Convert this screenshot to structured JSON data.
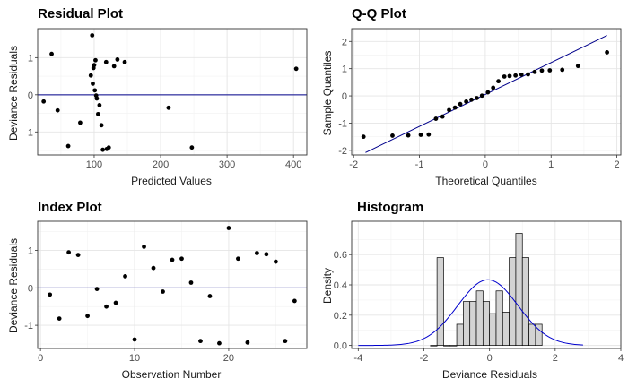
{
  "chart_data": [
    {
      "id": "residual",
      "type": "scatter",
      "title": "Residual Plot",
      "xlabel": "Predicted Values",
      "ylabel": "Deviance Residuals",
      "xlim": [
        15,
        420
      ],
      "ylim": [
        -1.62,
        1.78
      ],
      "xticks": [
        100,
        200,
        300,
        400
      ],
      "yticks": [
        -1,
        0,
        1
      ],
      "grid": true,
      "hline": 0,
      "line_color": "#00008b",
      "points": [
        [
          24,
          -0.18
        ],
        [
          36,
          1.1
        ],
        [
          45,
          -0.42
        ],
        [
          61,
          -1.38
        ],
        [
          79,
          -0.75
        ],
        [
          95,
          0.52
        ],
        [
          97,
          1.6
        ],
        [
          98,
          0.3
        ],
        [
          99,
          0.72
        ],
        [
          100,
          0.8
        ],
        [
          101,
          0.12
        ],
        [
          102,
          0.93
        ],
        [
          103,
          -0.02
        ],
        [
          104,
          -0.1
        ],
        [
          106,
          -0.52
        ],
        [
          108,
          -0.28
        ],
        [
          111,
          -0.82
        ],
        [
          113,
          -1.48
        ],
        [
          118,
          0.88
        ],
        [
          119,
          -1.46
        ],
        [
          122,
          -1.42
        ],
        [
          130,
          0.77
        ],
        [
          135,
          0.95
        ],
        [
          146,
          0.88
        ],
        [
          212,
          -0.35
        ],
        [
          247,
          -1.42
        ],
        [
          404,
          0.7
        ]
      ]
    },
    {
      "id": "qq",
      "type": "scatter",
      "title": "Q-Q Plot",
      "xlabel": "Theoretical Quantiles",
      "ylabel": "Sample Quantiles",
      "xlim": [
        -2.03,
        2.06
      ],
      "ylim": [
        -2.17,
        2.47
      ],
      "xticks": [
        -2,
        -1,
        0,
        1,
        2
      ],
      "yticks": [
        -2,
        -1,
        0,
        1,
        2
      ],
      "grid": true,
      "ref_line": [
        [
          -1.82,
          -2.08
        ],
        [
          1.85,
          2.22
        ]
      ],
      "line_color": "#00008b",
      "points": [
        [
          -1.85,
          -1.5
        ],
        [
          -1.41,
          -1.46
        ],
        [
          -1.17,
          -1.45
        ],
        [
          -0.98,
          -1.43
        ],
        [
          -0.86,
          -1.42
        ],
        [
          -0.75,
          -0.84
        ],
        [
          -0.65,
          -0.76
        ],
        [
          -0.55,
          -0.52
        ],
        [
          -0.46,
          -0.43
        ],
        [
          -0.38,
          -0.3
        ],
        [
          -0.29,
          -0.21
        ],
        [
          -0.21,
          -0.14
        ],
        [
          -0.13,
          -0.08
        ],
        [
          -0.05,
          0.01
        ],
        [
          0.04,
          0.13
        ],
        [
          0.12,
          0.3
        ],
        [
          0.2,
          0.54
        ],
        [
          0.29,
          0.71
        ],
        [
          0.37,
          0.73
        ],
        [
          0.46,
          0.75
        ],
        [
          0.55,
          0.78
        ],
        [
          0.65,
          0.79
        ],
        [
          0.75,
          0.88
        ],
        [
          0.86,
          0.93
        ],
        [
          0.98,
          0.94
        ],
        [
          1.17,
          0.96
        ],
        [
          1.41,
          1.1
        ],
        [
          1.85,
          1.6
        ]
      ]
    },
    {
      "id": "index",
      "type": "scatter",
      "title": "Index Plot",
      "xlabel": "Observation Number",
      "ylabel": "Deviance Residuals",
      "xlim": [
        -0.3,
        28.3
      ],
      "ylim": [
        -1.62,
        1.78
      ],
      "xticks": [
        0,
        10,
        20
      ],
      "yticks": [
        -1,
        0,
        1
      ],
      "grid": true,
      "hline": 0,
      "line_color": "#00008b",
      "points": [
        [
          1,
          -0.18
        ],
        [
          2,
          -0.82
        ],
        [
          3,
          0.95
        ],
        [
          4,
          0.88
        ],
        [
          5,
          -0.75
        ],
        [
          6,
          -0.03
        ],
        [
          7,
          -0.5
        ],
        [
          8,
          -0.4
        ],
        [
          9,
          0.31
        ],
        [
          10,
          -1.38
        ],
        [
          11,
          1.1
        ],
        [
          12,
          0.53
        ],
        [
          13,
          -0.1
        ],
        [
          14,
          0.75
        ],
        [
          15,
          0.78
        ],
        [
          16,
          0.14
        ],
        [
          17,
          -1.42
        ],
        [
          18,
          -0.22
        ],
        [
          19,
          -1.48
        ],
        [
          20,
          1.6
        ],
        [
          21,
          0.78
        ],
        [
          22,
          -1.46
        ],
        [
          23,
          0.93
        ],
        [
          24,
          0.9
        ],
        [
          25,
          0.7
        ],
        [
          26,
          -1.42
        ],
        [
          27,
          -0.35
        ]
      ]
    },
    {
      "id": "histogram",
      "type": "bar",
      "title": "Histogram",
      "xlabel": "Deviance Residuals",
      "ylabel": "Density",
      "xlim": [
        -4.2,
        4.0
      ],
      "ylim": [
        -0.02,
        0.82
      ],
      "xticks": [
        -4,
        -2,
        0,
        2,
        4
      ],
      "yticks": [
        0,
        0.2,
        0.4,
        0.6
      ],
      "yticklabels": [
        "0.0",
        "0.2",
        "0.4",
        "0.6"
      ],
      "grid": true,
      "bin_width": 0.2,
      "bar_color": "#d3d3d3",
      "bins": [
        [
          -1.8,
          0.0
        ],
        [
          -1.6,
          0.58
        ],
        [
          -1.4,
          0.0
        ],
        [
          -1.2,
          0.0
        ],
        [
          -1.0,
          0.14
        ],
        [
          -0.8,
          0.29
        ],
        [
          -0.6,
          0.29
        ],
        [
          -0.4,
          0.36
        ],
        [
          -0.2,
          0.29
        ],
        [
          0.0,
          0.21
        ],
        [
          0.2,
          0.36
        ],
        [
          0.4,
          0.22
        ],
        [
          0.6,
          0.58
        ],
        [
          0.8,
          0.74
        ],
        [
          1.0,
          0.58
        ],
        [
          1.2,
          0.14
        ],
        [
          1.4,
          0.14
        ]
      ],
      "density_curve": {
        "mean": -0.05,
        "sd": 0.92
      },
      "curve_range": [
        -4.0,
        2.85
      ],
      "line_color": "#0000cd"
    }
  ]
}
